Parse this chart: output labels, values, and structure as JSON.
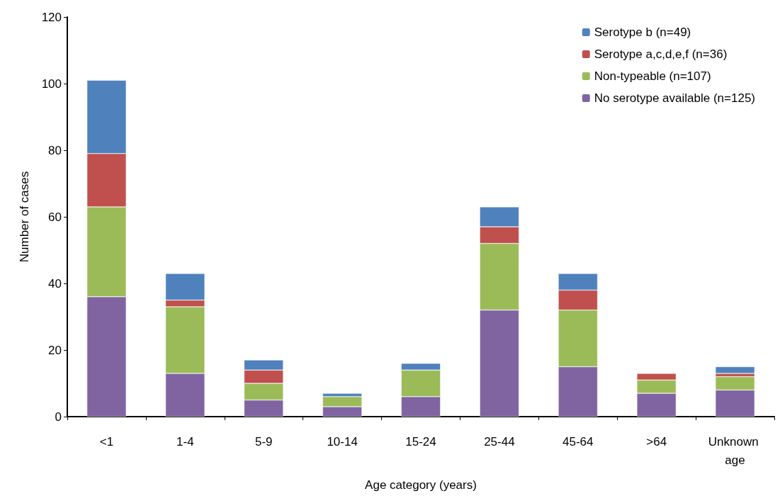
{
  "chart_data": {
    "type": "bar",
    "stacked": true,
    "xlabel": "Age category (years)",
    "ylabel": "Number of cases",
    "categories": [
      "<1",
      "1-4",
      "5-9",
      "10-14",
      "15-24",
      "25-44",
      "45-64",
      ">64",
      "Unknown age"
    ],
    "series": [
      {
        "name": "No serotype available (n=125)",
        "color": "#8064a2",
        "values": [
          36,
          13,
          5,
          3,
          6,
          32,
          15,
          7,
          8
        ]
      },
      {
        "name": "Non-typeable (n=107)",
        "color": "#9bbb59",
        "values": [
          27,
          20,
          5,
          3,
          8,
          20,
          17,
          4,
          4
        ]
      },
      {
        "name": "Serotype a,c,d,e,f (n=36)",
        "color": "#c0504d",
        "values": [
          16,
          2,
          4,
          0,
          0,
          5,
          6,
          2,
          1
        ]
      },
      {
        "name": "Serotype b (n=49)",
        "color": "#4f81bd",
        "values": [
          22,
          8,
          3,
          1,
          2,
          6,
          5,
          0,
          2
        ]
      }
    ],
    "ylim": [
      0,
      120
    ],
    "yticks": [
      0,
      20,
      40,
      60,
      80,
      100,
      120
    ],
    "grid": false,
    "legend": "top right"
  }
}
